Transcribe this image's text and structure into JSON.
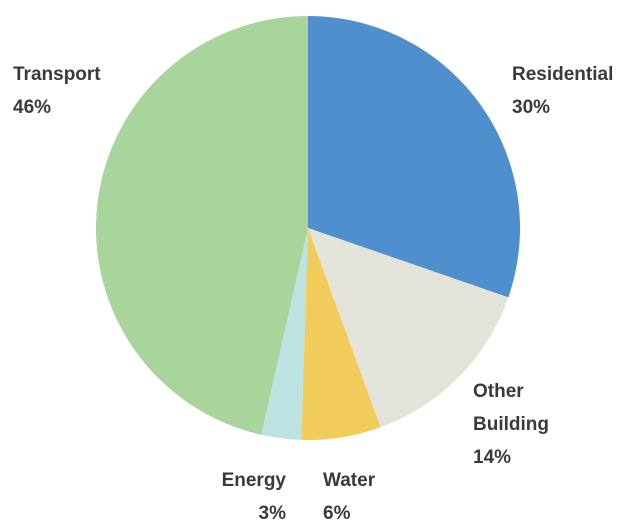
{
  "chart_data": {
    "type": "pie",
    "title": "",
    "slices": [
      {
        "label": "Residential",
        "value": 30,
        "value_label": "30%",
        "color": "#4f8fcd"
      },
      {
        "label": "Other\nBuilding",
        "value": 14,
        "value_label": "14%",
        "color": "#e3e3da"
      },
      {
        "label": "Water",
        "value": 6,
        "value_label": "6%",
        "color": "#f2cc5b"
      },
      {
        "label": "Energy",
        "value": 3,
        "value_label": "3%",
        "color": "#bce2e2"
      },
      {
        "label": "Transport",
        "value": 46,
        "value_label": "46%",
        "color": "#a9d49c"
      }
    ]
  }
}
